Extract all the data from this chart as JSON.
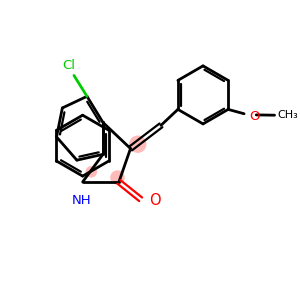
{
  "background_color": "#ffffff",
  "bond_color": "#000000",
  "cl_color": "#00cc00",
  "nh_color": "#0000ff",
  "o_color": "#ff0000",
  "highlight_color": "#ff6666",
  "highlight_alpha": 0.45,
  "figsize": [
    3.0,
    3.0
  ],
  "dpi": 100,
  "xlim": [
    0,
    10
  ],
  "ylim": [
    0,
    10
  ]
}
